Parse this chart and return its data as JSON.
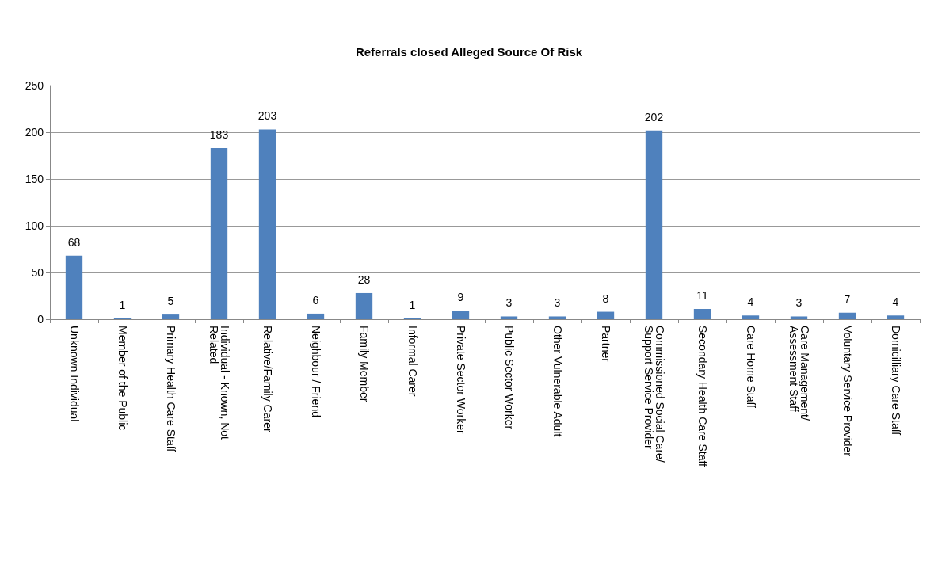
{
  "chart_data": {
    "type": "bar",
    "title": "Referrals closed Alleged Source Of Risk",
    "categories": [
      "Unknown Individual",
      "Member of the Public",
      "Primary Health Care Staff",
      "Individual - Known, Not Related",
      "Relative/Family Carer",
      "Neighbour / Friend",
      "Family Member",
      "Informal Carer",
      "Private Sector Worker",
      "Public Sector Worker",
      "Other Vulnerable Adult",
      "Partner",
      "Commissioned Social Care/Support Service Provider",
      "Secondary Health Care Staff",
      "Care Home Staff",
      "Care Management/Assessment Staff",
      "Voluntary Service Provider",
      "Domicilliary Care Staff"
    ],
    "values": [
      68,
      1,
      5,
      183,
      203,
      6,
      28,
      1,
      9,
      3,
      3,
      8,
      202,
      11,
      4,
      3,
      7,
      4
    ],
    "color": "#4f81bd",
    "ylim": [
      0,
      250
    ],
    "yticks": [
      0,
      50,
      100,
      150,
      200,
      250
    ],
    "grid": "y",
    "data_labels": true
  }
}
